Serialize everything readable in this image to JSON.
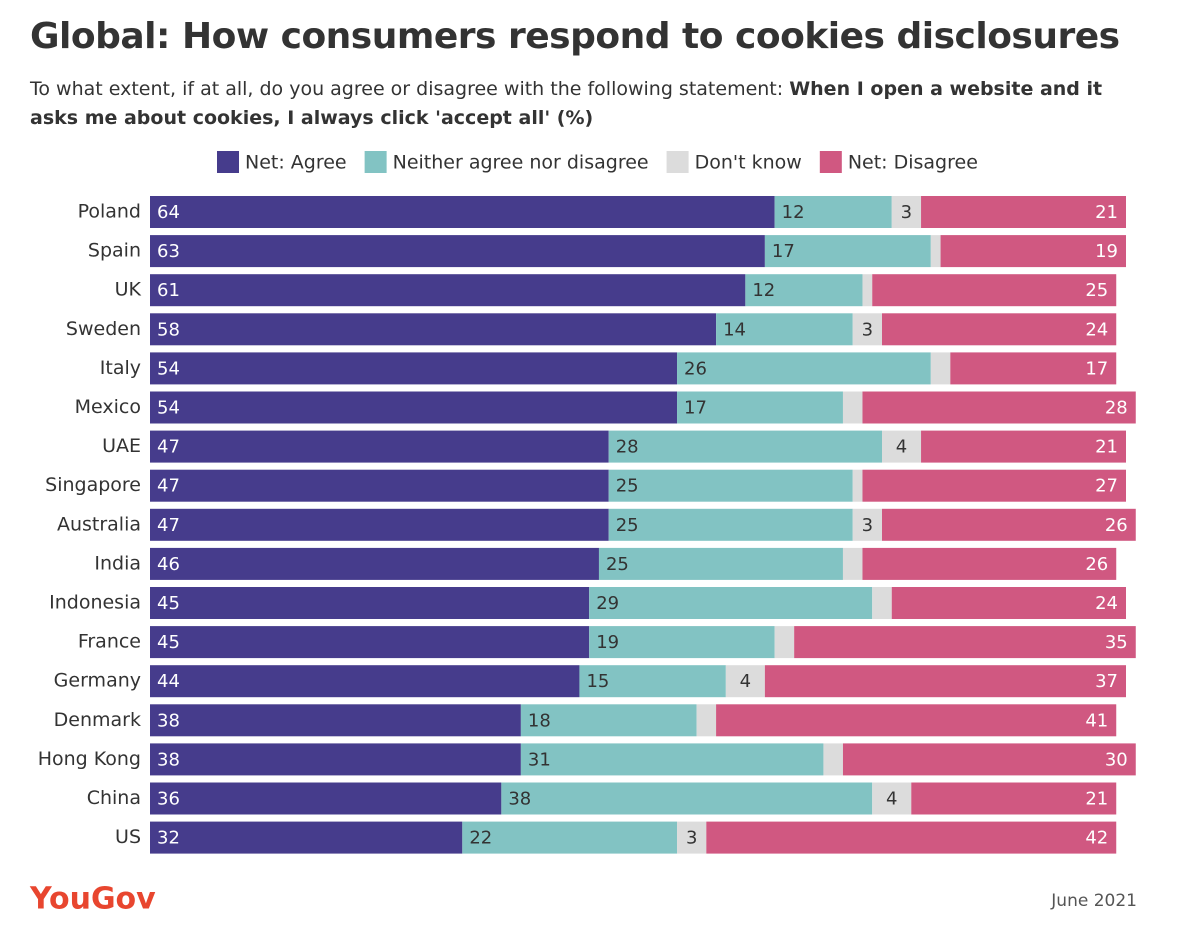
{
  "chart_data": {
    "type": "stacked-bar",
    "title": "Global: How consumers respond to cookies disclosures",
    "subtitle": "To what extent, if at all, do you agree or disagree with the following statement:",
    "question": "When I open a website and it asks me about cookies, I always click 'accept all' (%)",
    "categories": [
      "Poland",
      "Spain",
      "UK",
      "Sweden",
      "Italy",
      "Mexico",
      "UAE",
      "Singapore",
      "Australia",
      "India",
      "Indonesia",
      "France",
      "Germany",
      "Denmark",
      "Hong Kong",
      "China",
      "US"
    ],
    "series": [
      {
        "name": "Net: Agree",
        "color": "#463c8c",
        "values": [
          64,
          63,
          61,
          58,
          54,
          54,
          47,
          47,
          47,
          46,
          45,
          45,
          44,
          38,
          38,
          36,
          32
        ]
      },
      {
        "name": "Neither agree nor disagree",
        "color": "#82c3c3",
        "values": [
          12,
          17,
          12,
          14,
          26,
          17,
          28,
          25,
          25,
          25,
          29,
          19,
          15,
          18,
          31,
          38,
          22
        ]
      },
      {
        "name": "Don't know",
        "color": "#dcdcdc",
        "values": [
          3,
          1,
          1,
          3,
          2,
          2,
          4,
          1,
          3,
          2,
          2,
          2,
          4,
          2,
          2,
          4,
          3
        ]
      },
      {
        "name": "Net: Disagree",
        "color": "#d05881",
        "values": [
          21,
          19,
          25,
          24,
          17,
          28,
          21,
          27,
          26,
          26,
          24,
          35,
          37,
          41,
          30,
          21,
          42
        ]
      }
    ],
    "xlim": [
      0,
      100
    ],
    "source": "YouGov",
    "date": "June 2021"
  }
}
